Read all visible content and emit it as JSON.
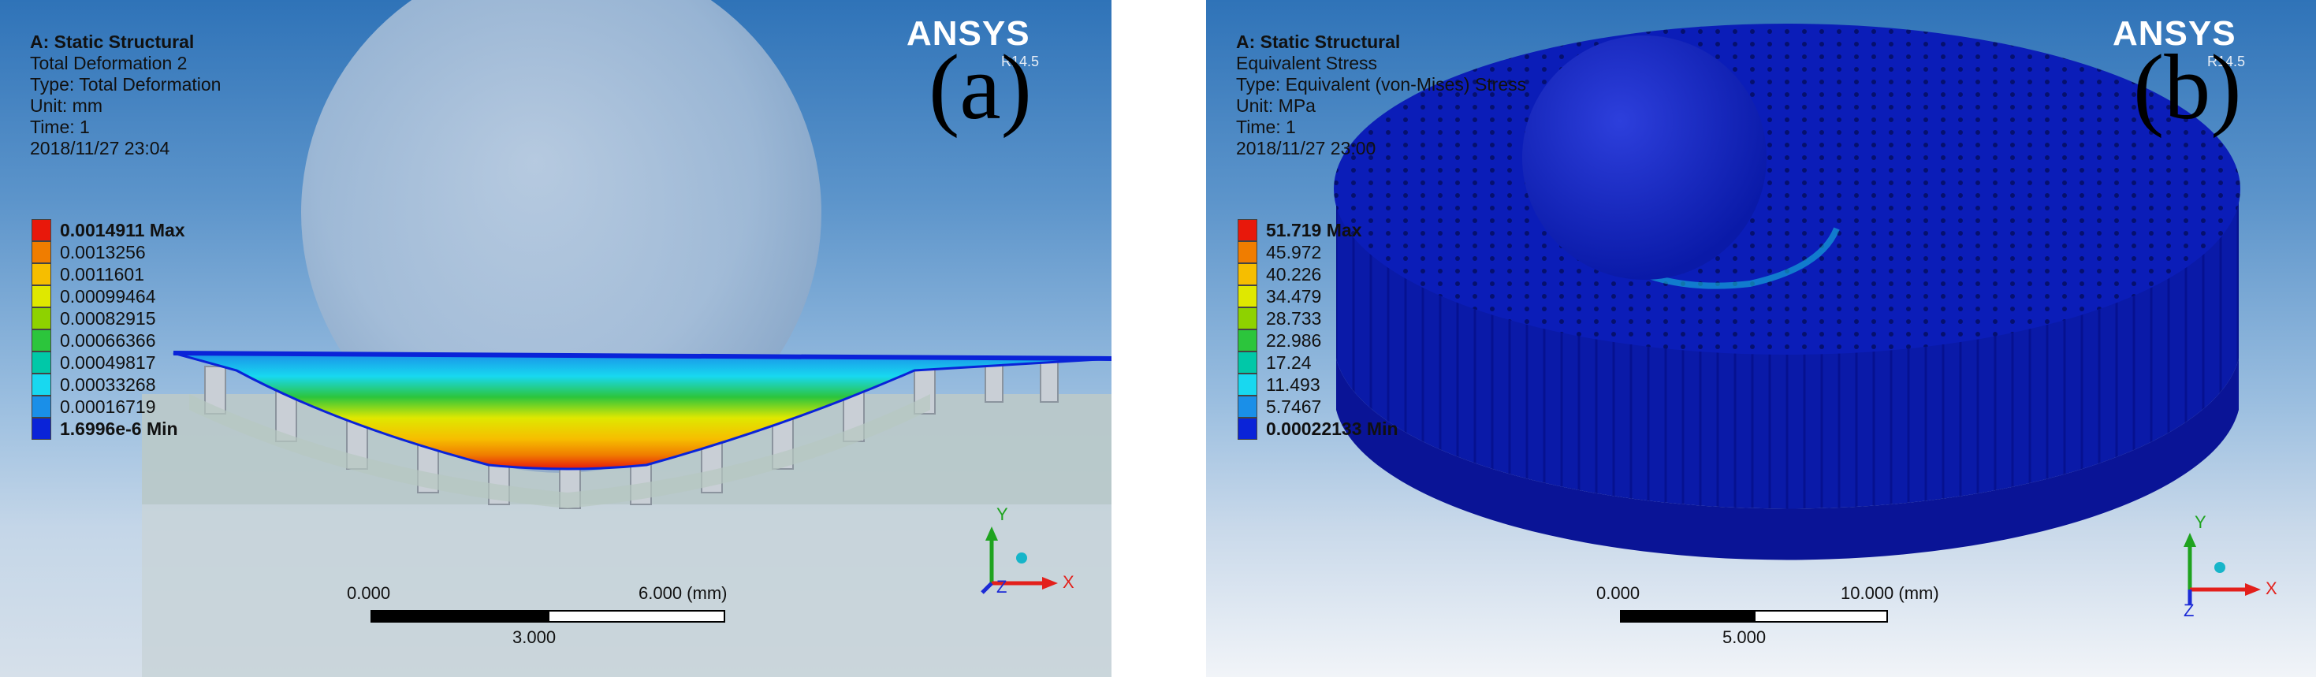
{
  "panels": {
    "a": {
      "header_lines": [
        "A: Static Structural",
        "Total Deformation 2",
        "Type: Total Deformation",
        "Unit: mm",
        "Time: 1",
        "2018/11/27 23:04"
      ],
      "brand": "ANSYS",
      "version": "R14.5",
      "panel_letter": "(a)",
      "legend": [
        {
          "label": "0.0014911 Max",
          "color": "#e8180b",
          "bold": true
        },
        {
          "label": "0.0013256",
          "color": "#f07d00",
          "bold": false
        },
        {
          "label": "0.0011601",
          "color": "#f6be00",
          "bold": false
        },
        {
          "label": "0.00099464",
          "color": "#dfe800",
          "bold": false
        },
        {
          "label": "0.00082915",
          "color": "#8ed200",
          "bold": false
        },
        {
          "label": "0.00066366",
          "color": "#2cc53c",
          "bold": false
        },
        {
          "label": "0.00049817",
          "color": "#00c8a8",
          "bold": false
        },
        {
          "label": "0.00033268",
          "color": "#18d8f0",
          "bold": false
        },
        {
          "label": "0.00016719",
          "color": "#1a8fe8",
          "bold": false
        },
        {
          "label": "1.6996e-6 Min",
          "color": "#0a23d8",
          "bold": true
        }
      ],
      "scale": {
        "left_label": "0.000",
        "right_label": "6.000 (mm)",
        "mid_label": "3.000"
      },
      "axes": {
        "y": "Y",
        "x": "X",
        "z": "Z"
      }
    },
    "b": {
      "header_lines": [
        "A: Static Structural",
        "Equivalent Stress",
        "Type: Equivalent (von-Mises) Stress",
        "Unit: MPa",
        "Time: 1",
        "2018/11/27 23:00"
      ],
      "brand": "ANSYS",
      "version": "R14.5",
      "panel_letter": "(b)",
      "legend": [
        {
          "label": "51.719 Max",
          "color": "#e8180b",
          "bold": true
        },
        {
          "label": "45.972",
          "color": "#f07d00",
          "bold": false
        },
        {
          "label": "40.226",
          "color": "#f6be00",
          "bold": false
        },
        {
          "label": "34.479",
          "color": "#dfe800",
          "bold": false
        },
        {
          "label": "28.733",
          "color": "#8ed200",
          "bold": false
        },
        {
          "label": "22.986",
          "color": "#2cc53c",
          "bold": false
        },
        {
          "label": "17.24",
          "color": "#00c8a8",
          "bold": false
        },
        {
          "label": "11.493",
          "color": "#18d8f0",
          "bold": false
        },
        {
          "label": "5.7467",
          "color": "#1a8fe8",
          "bold": false
        },
        {
          "label": "0.00022133 Min",
          "color": "#0a23d8",
          "bold": true
        }
      ],
      "scale": {
        "left_label": "0.000",
        "right_label": "10.000 (mm)",
        "mid_label": "5.000"
      },
      "axes": {
        "y": "Y",
        "x": "X",
        "z": "Z"
      }
    }
  },
  "colors": {
    "axis_y": "#1fa31f",
    "axis_x": "#e3201b",
    "axis_z": "#1c2bd6",
    "triad_ball": "#17b5c9"
  }
}
